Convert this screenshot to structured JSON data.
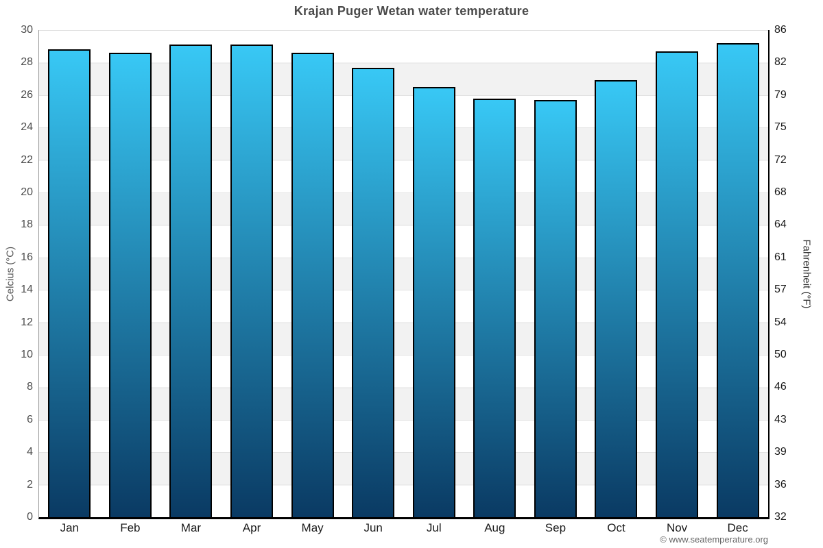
{
  "chart_data": {
    "type": "bar",
    "title": "Krajan Puger Wetan water temperature",
    "categories": [
      "Jan",
      "Feb",
      "Mar",
      "Apr",
      "May",
      "Jun",
      "Jul",
      "Aug",
      "Sep",
      "Oct",
      "Nov",
      "Dec"
    ],
    "series": [
      {
        "name": "Water temperature (°C)",
        "values": [
          28.8,
          28.6,
          29.1,
          29.1,
          28.6,
          27.7,
          26.5,
          25.8,
          25.7,
          26.9,
          28.7,
          29.2
        ]
      }
    ],
    "xlabel": "",
    "ylabel_left": "Celcius (°C)",
    "ylabel_right": "Fahrenheit (°F)",
    "ylim": [
      0,
      30
    ],
    "ytick_step": 2,
    "yticks_left": [
      "30",
      "28",
      "26",
      "24",
      "22",
      "20",
      "18",
      "16",
      "14",
      "12",
      "10",
      "8",
      "6",
      "4",
      "2",
      "0"
    ],
    "yticks_right": [
      "86",
      "82",
      "79",
      "75",
      "72",
      "68",
      "64",
      "61",
      "57",
      "54",
      "50",
      "46",
      "43",
      "39",
      "36",
      "32"
    ],
    "grid": "horizontal alternating bands, light gridlines every 2°C",
    "legend": "none"
  },
  "footer": {
    "credit": "© www.seatemperature.org"
  },
  "colors": {
    "bar_top": "#38c8f5",
    "bar_bottom": "#0a3a63",
    "bar_border": "#000000",
    "band_gray": "#f2f2f2",
    "gridline": "#e2e2e2",
    "axis_left": "#9a9a9a",
    "axis_right": "#000000",
    "baseline": "#000000",
    "title_color": "#4a4a4a",
    "tick_left": "#4d4d4d",
    "tick_right": "#1a1a1a",
    "axis_title_left": "#555555",
    "axis_title_right": "#333333",
    "month_color": "#1a1a1a",
    "footer_color": "#666666"
  }
}
